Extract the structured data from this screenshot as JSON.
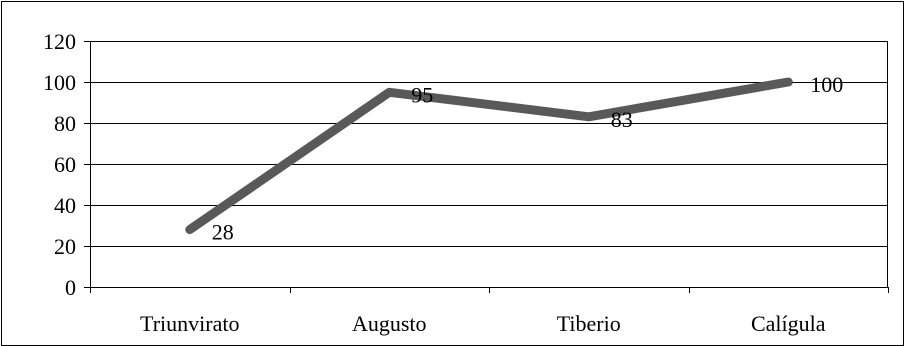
{
  "chart_data": {
    "type": "line",
    "title": "",
    "xlabel": "",
    "ylabel": "",
    "categories": [
      "Triunvirato",
      "Augusto",
      "Tiberio",
      "Calígula"
    ],
    "series": [
      {
        "values": [
          28,
          95,
          83,
          100
        ]
      }
    ],
    "data_labels": [
      "28",
      "95",
      "83",
      "100"
    ],
    "ylim": [
      0,
      120
    ],
    "yticks": [
      0,
      20,
      40,
      60,
      80,
      100,
      120
    ],
    "grid": true,
    "legend": "none",
    "line_color": "#595959",
    "grid_color": "#000000"
  }
}
